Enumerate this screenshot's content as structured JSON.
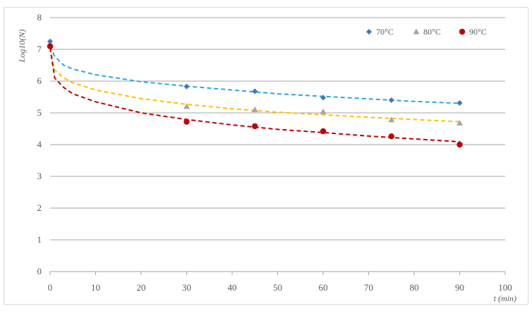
{
  "chart_data": {
    "type": "scatter",
    "title": "",
    "xlabel": "t (min)",
    "ylabel": "Log10(N)",
    "xlim": [
      0,
      100
    ],
    "ylim": [
      0,
      8
    ],
    "xticks": [
      0,
      10,
      20,
      30,
      40,
      50,
      60,
      70,
      80,
      90,
      100
    ],
    "yticks": [
      0,
      1,
      2,
      3,
      4,
      5,
      6,
      7,
      8
    ],
    "grid": "horizontal",
    "legend_position": "top-right",
    "series": [
      {
        "name": "70°C",
        "marker": "diamond",
        "color": "#4472C4",
        "trend_color": "#2AA8DC",
        "x": [
          0,
          30,
          45,
          60,
          75,
          90
        ],
        "y": [
          7.25,
          5.83,
          5.68,
          5.48,
          5.4,
          5.31
        ],
        "trend": [
          [
            0,
            7.1
          ],
          [
            1,
            6.78
          ],
          [
            3,
            6.5
          ],
          [
            5,
            6.38
          ],
          [
            10,
            6.2
          ],
          [
            20,
            5.98
          ],
          [
            30,
            5.84
          ],
          [
            40,
            5.72
          ],
          [
            50,
            5.6
          ],
          [
            60,
            5.52
          ],
          [
            70,
            5.44
          ],
          [
            80,
            5.36
          ],
          [
            90,
            5.3
          ]
        ]
      },
      {
        "name": "80°C",
        "marker": "triangle",
        "color": "#A5A5A5",
        "trend_color": "#FFC000",
        "x": [
          0,
          30,
          45,
          60,
          75,
          90
        ],
        "y": [
          7.12,
          5.2,
          5.1,
          5.04,
          4.78,
          4.68
        ],
        "trend": [
          [
            0,
            7.05
          ],
          [
            1,
            6.35
          ],
          [
            3,
            6.1
          ],
          [
            5,
            5.95
          ],
          [
            10,
            5.72
          ],
          [
            20,
            5.45
          ],
          [
            30,
            5.27
          ],
          [
            40,
            5.13
          ],
          [
            50,
            5.02
          ],
          [
            60,
            4.94
          ],
          [
            70,
            4.86
          ],
          [
            80,
            4.79
          ],
          [
            90,
            4.72
          ]
        ]
      },
      {
        "name": "90°C",
        "marker": "circle",
        "color": "#C00000",
        "trend_color": "#C00000",
        "x": [
          0,
          30,
          45,
          60,
          75,
          90
        ],
        "y": [
          7.1,
          4.72,
          4.58,
          4.42,
          4.26,
          4.0
        ],
        "trend": [
          [
            0,
            7.05
          ],
          [
            1,
            6.1
          ],
          [
            3,
            5.8
          ],
          [
            5,
            5.6
          ],
          [
            10,
            5.35
          ],
          [
            20,
            5.0
          ],
          [
            30,
            4.79
          ],
          [
            40,
            4.62
          ],
          [
            50,
            4.48
          ],
          [
            60,
            4.38
          ],
          [
            70,
            4.27
          ],
          [
            80,
            4.18
          ],
          [
            90,
            4.09
          ]
        ]
      }
    ]
  }
}
